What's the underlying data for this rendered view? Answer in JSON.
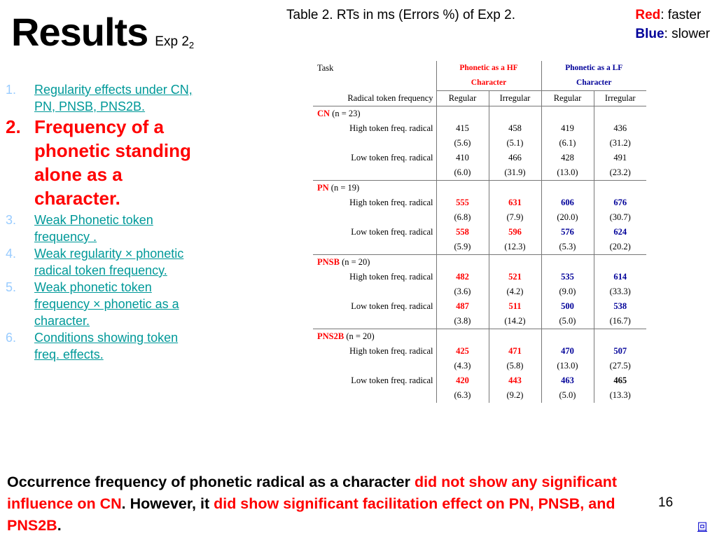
{
  "title": {
    "main": "Results",
    "sub": "Exp 2",
    "sub_index": "2"
  },
  "table_caption": "Table 2. RTs in ms (Errors %) of Exp 2.",
  "legend": {
    "red_word": "Red",
    "red_rest": ": faster",
    "blue_word": "Blue",
    "blue_rest": ": slower"
  },
  "points": [
    {
      "num": "1.",
      "text": "Regularity effects under CN, PN, PNSB, PNS2B."
    },
    {
      "num": "2.",
      "text": "Frequency of a phonetic standing alone as a character."
    },
    {
      "num": "3.",
      "text": "Weak Phonetic token frequency ."
    },
    {
      "num": "4.",
      "text": "Weak regularity × phonetic radical token frequency."
    },
    {
      "num": "5.",
      "text": "Weak phonetic token frequency × phonetic as a character."
    },
    {
      "num": "6.",
      "text": "Conditions showing token freq. effects."
    }
  ],
  "table": {
    "task": "Task",
    "radical_freq": "Radical token frequency",
    "hf_line1": "Phonetic as a HF",
    "hf_line2": "Character",
    "lf_line1": "Phonetic as a LF",
    "lf_line2": "Character",
    "regular": "Regular",
    "irregular": "Irregular",
    "high_label": "High token freq. radical",
    "low_label": "Low token freq. radical",
    "groups": [
      {
        "name": "CN",
        "n": "(n = 23)",
        "style": [
          "plain",
          "plain",
          "plain",
          "plain"
        ],
        "high_rt": [
          "415",
          "458",
          "419",
          "436"
        ],
        "high_err": [
          "(5.6)",
          "(5.1)",
          "(6.1)",
          "(31.2)"
        ],
        "low_rt": [
          "410",
          "466",
          "428",
          "491"
        ],
        "low_err": [
          "(6.0)",
          "(31.9)",
          "(13.0)",
          "(23.2)"
        ]
      },
      {
        "name": "PN",
        "n": "(n = 19)",
        "style": [
          "red",
          "red",
          "blue",
          "blue"
        ],
        "high_rt": [
          "555",
          "631",
          "606",
          "676"
        ],
        "high_err": [
          "(6.8)",
          "(7.9)",
          "(20.0)",
          "(30.7)"
        ],
        "low_rt": [
          "558",
          "596",
          "576",
          "624"
        ],
        "low_err": [
          "(5.9)",
          "(12.3)",
          "(5.3)",
          "(20.2)"
        ]
      },
      {
        "name": "PNSB",
        "n": "(n = 20)",
        "style": [
          "red",
          "red",
          "blue",
          "blue"
        ],
        "high_rt": [
          "482",
          "521",
          "535",
          "614"
        ],
        "high_err": [
          "(3.6)",
          "(4.2)",
          "(9.0)",
          "(33.3)"
        ],
        "low_rt": [
          "487",
          "511",
          "500",
          "538"
        ],
        "low_err": [
          "(3.8)",
          "(14.2)",
          "(5.0)",
          "(16.7)"
        ]
      },
      {
        "name": "PNS2B",
        "n": "(n = 20)",
        "style": [
          "red",
          "red",
          "blue",
          "blue"
        ],
        "low_style_last": "blk",
        "high_rt": [
          "425",
          "471",
          "470",
          "507"
        ],
        "high_err": [
          "(4.3)",
          "(5.8)",
          "(13.0)",
          "(27.5)"
        ],
        "low_rt": [
          "420",
          "443",
          "463",
          "465"
        ],
        "low_err": [
          "(6.3)",
          "(9.2)",
          "(5.0)",
          "(13.3)"
        ]
      }
    ]
  },
  "conclusion": {
    "part1": "Occurrence frequency of phonetic radical as a character ",
    "part2": "did not show any significant influence on CN",
    "part3": ". However, it ",
    "part4": "did show significant facilitation effect on PN, PNSB, and PNS2B",
    "part5": "."
  },
  "page_number": "16",
  "nav_icon_glyph": "回",
  "colors": {
    "red": "#ff0000",
    "blue": "#000099",
    "teal_link": "#009999",
    "bullet": "#99ccff"
  }
}
